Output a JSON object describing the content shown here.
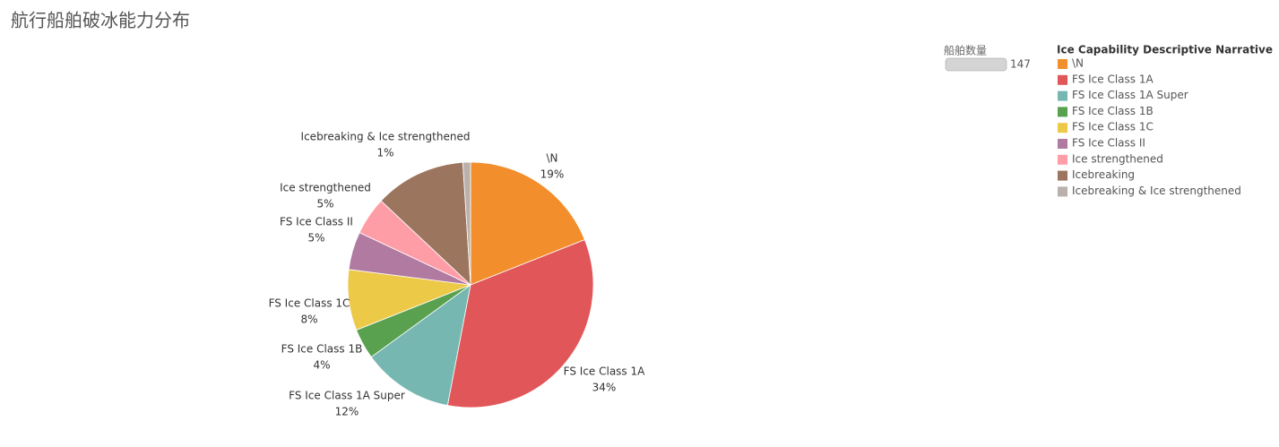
{
  "chart_data": {
    "type": "pie",
    "title": "航行船舶破冰能力分布",
    "legend_title": "Ice Capability Descriptive Narrative",
    "categories": [
      "\\N",
      "FS Ice Class 1A",
      "FS Ice Class 1A Super",
      "FS Ice Class 1B",
      "FS Ice Class 1C",
      "FS Ice Class II",
      "Ice strengthened",
      "Icebreaking",
      "Icebreaking & Ice strengthened"
    ],
    "values": [
      19,
      34,
      12,
      4,
      8,
      5,
      5,
      12,
      1
    ],
    "value_labels": [
      "19%",
      "34%",
      "12%",
      "4%",
      "8%",
      "5%",
      "5%",
      null,
      "1%"
    ],
    "colors": [
      "#f28e2b",
      "#e15759",
      "#76b7b2",
      "#59a14f",
      "#edc948",
      "#b07aa1",
      "#ff9da7",
      "#9c755f",
      "#bab0ac"
    ],
    "size_legend": {
      "title": "船舶数量",
      "value": 147
    },
    "legend": "right"
  }
}
